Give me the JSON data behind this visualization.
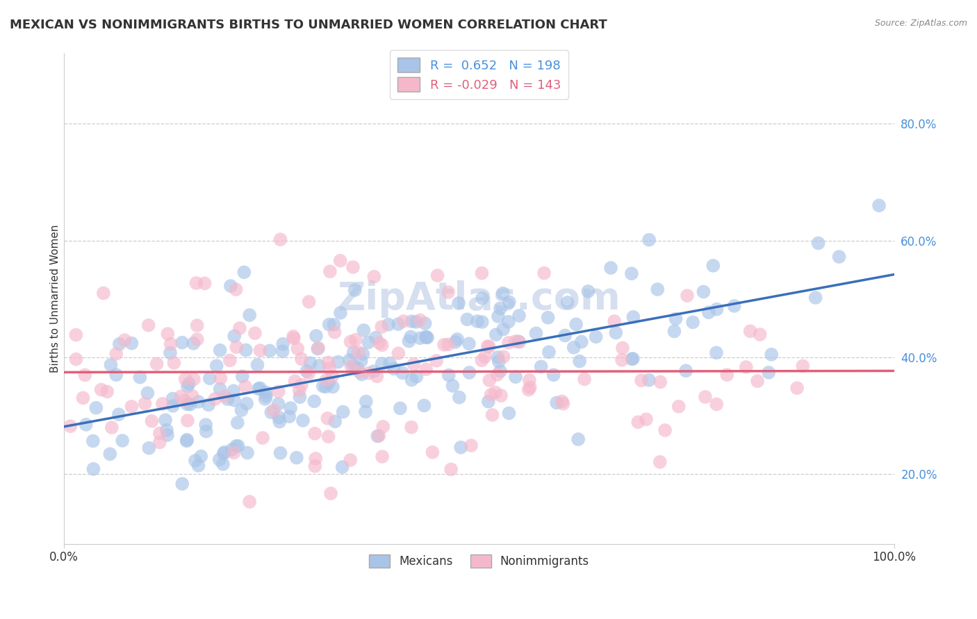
{
  "title": "MEXICAN VS NONIMMIGRANTS BIRTHS TO UNMARRIED WOMEN CORRELATION CHART",
  "source": "Source: ZipAtlas.com",
  "ylabel": "Births to Unmarried Women",
  "xlabel": "",
  "xlim": [
    0,
    1
  ],
  "ylim": [
    0.08,
    0.92
  ],
  "yticks": [
    0.2,
    0.4,
    0.6,
    0.8
  ],
  "ytick_labels": [
    "20.0%",
    "40.0%",
    "60.0%",
    "80.0%"
  ],
  "xticks": [
    0.0,
    1.0
  ],
  "xtick_labels": [
    "0.0%",
    "100.0%"
  ],
  "legend_labels": [
    "Mexicans",
    "Nonimmigrants"
  ],
  "r_mexican": 0.652,
  "n_mexican": 198,
  "r_nonimmigrant": -0.029,
  "n_nonimmigrant": 143,
  "color_mexican": "#a8c4e8",
  "color_nonimmigrant": "#f5b8cb",
  "line_color_mexican": "#3a6fba",
  "line_color_nonimmigrant": "#e0607a",
  "background_color": "#ffffff",
  "grid_color": "#c8c8c8",
  "title_color": "#333333",
  "source_color": "#888888",
  "title_fontsize": 13,
  "label_fontsize": 11,
  "tick_fontsize": 12,
  "legend_r_color": "#4a90d9",
  "watermark_color": "#ccd8ec",
  "right_tick_color": "#4a90d9"
}
